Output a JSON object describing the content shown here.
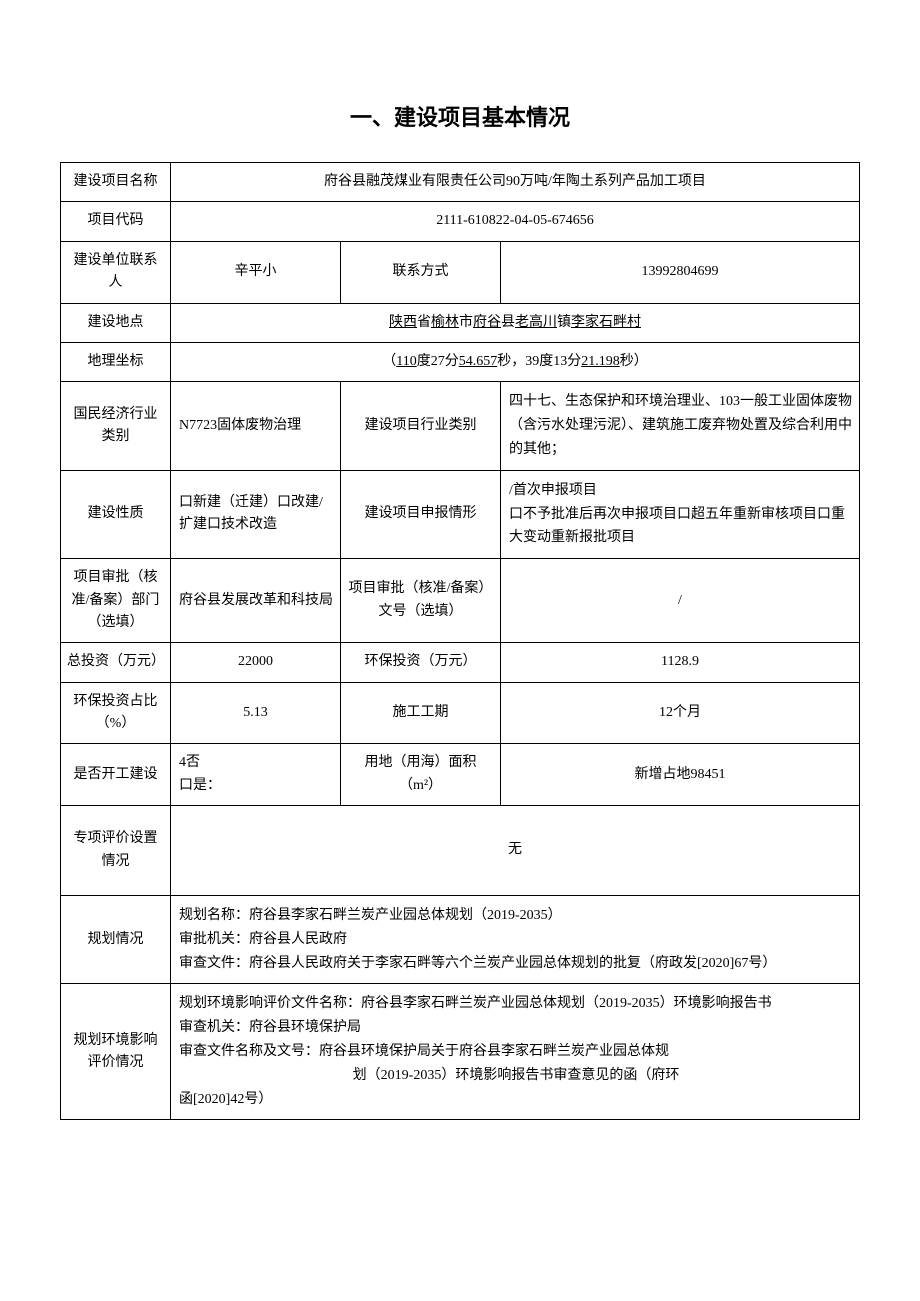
{
  "title": "一、建设项目基本情况",
  "rows": {
    "project_name_label": "建设项目名称",
    "project_name_value": "府谷县融茂煤业有限责任公司90万吨/年陶土系列产品加工项目",
    "project_code_label": "项目代码",
    "project_code_value": "2111-610822-04-05-674656",
    "contact_person_label": "建设单位联系人",
    "contact_person_value": "辛平小",
    "contact_method_label": "联系方式",
    "contact_method_value": "13992804699",
    "location_label": "建设地点",
    "location_prefix": "陕西",
    "location_p1": "省",
    "location_p2": "榆林",
    "location_p3": "市",
    "location_p4": "府谷",
    "location_p5": "县",
    "location_p6": "老高川",
    "location_p7": "镇",
    "location_p8": "李家石畔村",
    "geo_label": "地理坐标",
    "geo_open": "（",
    "geo_lon1": "110",
    "geo_lon2": "度27分",
    "geo_lon3": "54.657",
    "geo_lon4": "秒，39度13分",
    "geo_lon5": "21.198",
    "geo_lon6": "秒）",
    "industry_cat_label": "国民经济行业类别",
    "industry_cat_value": "N7723固体废物治理",
    "industry_type_label": "建设项目行业类别",
    "industry_type_value": "四十七、生态保护和环境治理业、103一般工业固体废物（含污水处理污泥）、建筑施工废弃物处置及综合利用中的其他；",
    "nature_label": "建设性质",
    "nature_value": "口新建（迁建）口改建/扩建口技术改造",
    "declare_label": "建设项目申报情形",
    "declare_value": "/首次申报项目\n口不予批准后再次申报项目口超五年重新审核项目口重大变动重新报批项目",
    "approval_dept_label": "项目审批（核准/备案）部门（选填）",
    "approval_dept_value": "府谷县发展改革和科技局",
    "approval_no_label": "项目审批（核准/备案）文号（选填）",
    "approval_no_value": "/",
    "total_invest_label": "总投资（万元）",
    "total_invest_value": "22000",
    "env_invest_label": "环保投资（万元）",
    "env_invest_value": "1128.9",
    "env_ratio_label": "环保投资占比（%）",
    "env_ratio_value": "5.13",
    "period_label": "施工工期",
    "period_value": "12个月",
    "started_label": "是否开工建设",
    "started_value": "4否\n口是：",
    "land_label": "用地（用海）面积（m²）",
    "land_value": "新增占地98451",
    "special_eval_label": "专项评价设置情况",
    "special_eval_value": "无",
    "plan_label": "规划情况",
    "plan_line1": "规划名称：府谷县李家石畔兰炭产业园总体规划（2019-2035）",
    "plan_line2": "审批机关：府谷县人民政府",
    "plan_line3": "审查文件：府谷县人民政府关于李家石畔等六个兰炭产业园总体规划的批复（府政发[2020]67号）",
    "eia_label": "规划环境影响评价情况",
    "eia_line1": "规划环境影响评价文件名称：府谷县李家石畔兰炭产业园总体规划（2019-2035）环境影响报告书",
    "eia_line2": "审查机关：府谷县环境保护局",
    "eia_line3a": "审查文件名称及文号：府谷县环境保护局关于府谷县李家石畔兰炭产业园总体规",
    "eia_line3b": "划（2019-2035）环境影响报告书审查意见的函（府环",
    "eia_line4": "函[2020]42号）"
  }
}
